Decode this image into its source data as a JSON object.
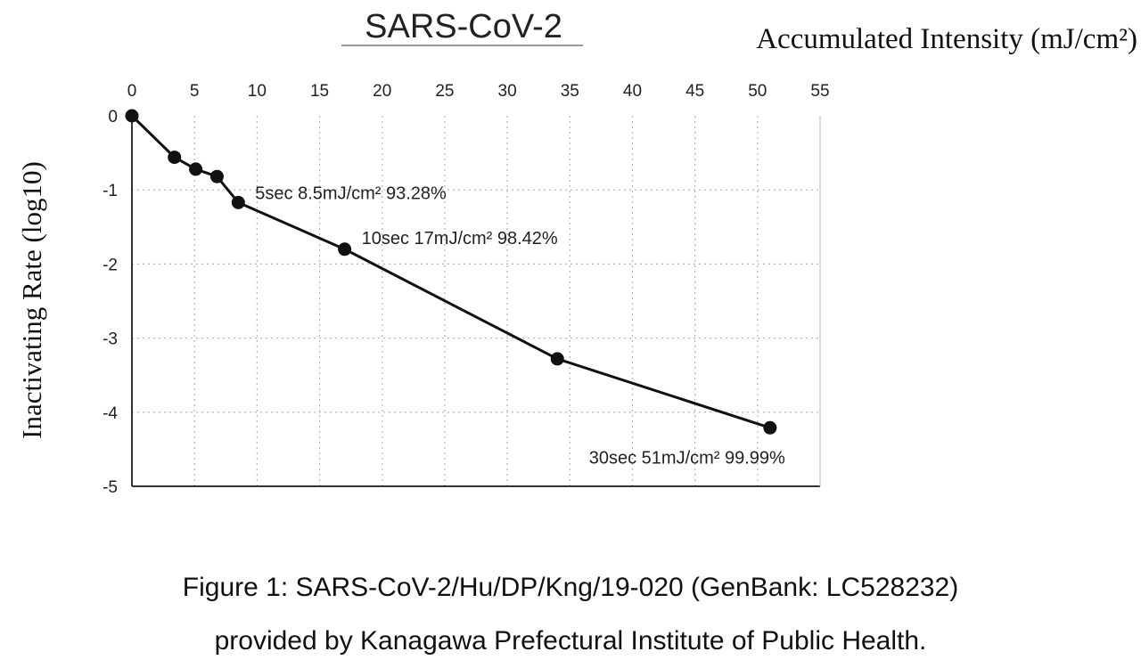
{
  "chart_data": {
    "type": "line",
    "title": "SARS-CoV-2",
    "xlabel": "Accumulated Intensity (mJ/cm²)",
    "ylabel": "Inactivating Rate (log10)",
    "x_axis_position": "top",
    "xlim": [
      0,
      55
    ],
    "ylim": [
      -5,
      0
    ],
    "xticks": [
      0,
      5,
      10,
      15,
      20,
      25,
      30,
      35,
      40,
      45,
      50,
      55
    ],
    "yticks": [
      0,
      -1,
      -2,
      -3,
      -4,
      -5
    ],
    "grid": true,
    "series": [
      {
        "x": [
          0,
          3.4,
          5.1,
          6.8,
          8.5,
          17,
          34,
          51
        ],
        "y": [
          0,
          -0.56,
          -0.72,
          -0.82,
          -1.17,
          -1.8,
          -3.28,
          -4.21
        ]
      }
    ],
    "annotations": [
      {
        "text": "5sec 8.5mJ/cm² 93.28%",
        "x": 8.5,
        "y": -1.17
      },
      {
        "text": "10sec 17mJ/cm² 98.42%",
        "x": 17,
        "y": -1.8
      },
      {
        "text": "30sec 51mJ/cm² 99.99%",
        "x": 51,
        "y": -4.21
      }
    ]
  },
  "caption": {
    "line1": "Figure 1: SARS-CoV-2/Hu/DP/Kng/19-020 (GenBank: LC528232)",
    "line2": "provided by Kanagawa Prefectural Institute of Public Health."
  },
  "colors": {
    "line": "#111111",
    "marker": "#111111",
    "grid": "#b4b4b4",
    "axis": "#333333"
  }
}
